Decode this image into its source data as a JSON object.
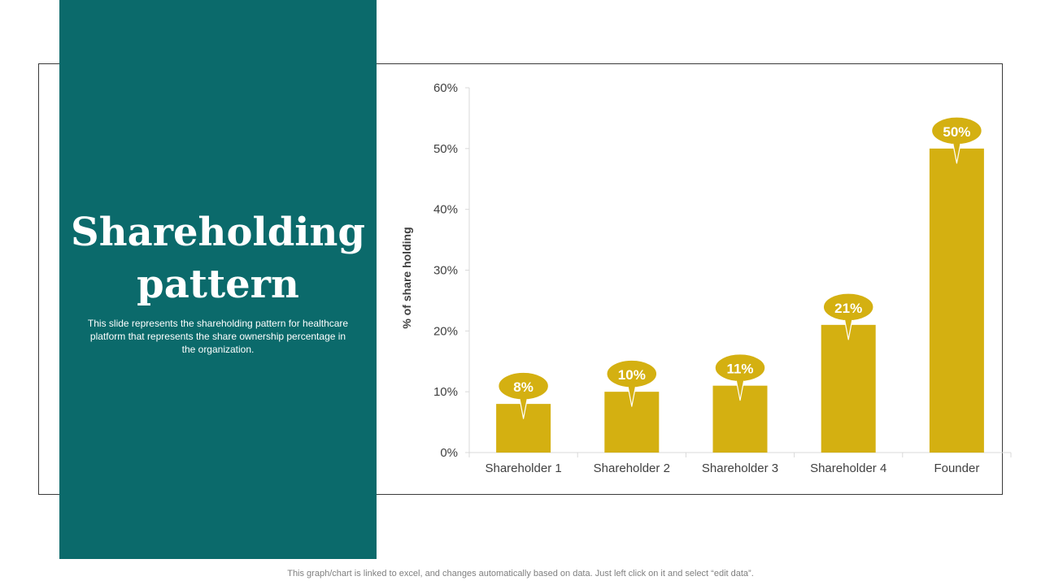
{
  "slide": {
    "title": "Shareholding pattern",
    "description": "This slide represents the shareholding pattern for healthcare platform that represents the share ownership percentage in the organization.",
    "footer_note": "This graph/chart is linked to excel, and changes automatically based on data. Just left click on it and select “edit data”."
  },
  "colors": {
    "panel": "#0b6a6b",
    "bar": "#d4b011",
    "text": "#404040",
    "axis": "#d9d9d9"
  },
  "chart_data": {
    "type": "bar",
    "categories": [
      "Shareholder 1",
      "Shareholder 2",
      "Shareholder 3",
      "Shareholder 4",
      "Founder"
    ],
    "values": [
      8,
      10,
      11,
      21,
      50
    ],
    "data_labels": [
      "8%",
      "10%",
      "11%",
      "21%",
      "50%"
    ],
    "title": "",
    "xlabel": "",
    "ylabel": "% of share holding",
    "ylim": [
      0,
      60
    ],
    "y_ticks": [
      0,
      10,
      20,
      30,
      40,
      50,
      60
    ],
    "y_tick_labels": [
      "0%",
      "10%",
      "20%",
      "30%",
      "40%",
      "50%",
      "60%"
    ],
    "grid": false,
    "legend": "none"
  }
}
